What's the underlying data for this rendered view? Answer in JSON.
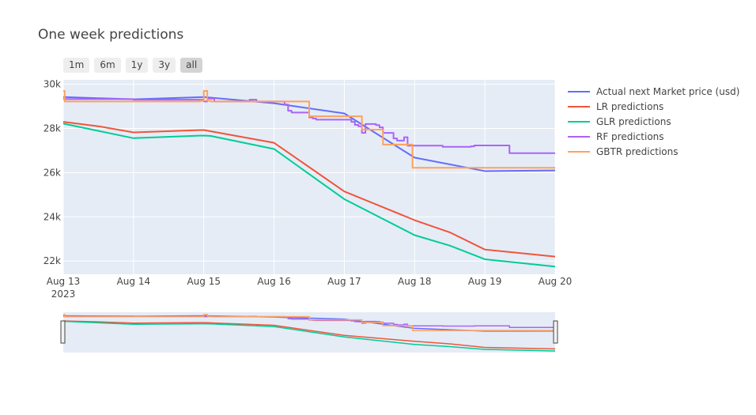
{
  "chart_data": {
    "type": "line",
    "title": "One week predictions",
    "range_buttons": [
      "1m",
      "6m",
      "1y",
      "3y",
      "all"
    ],
    "active_range": "all",
    "x_ticks": [
      "Aug 13",
      "Aug 14",
      "Aug 15",
      "Aug 16",
      "Aug 17",
      "Aug 18",
      "Aug 19",
      "Aug 20"
    ],
    "x_year_label": "2023",
    "xlim": [
      0,
      7
    ],
    "x_unit": "days from Aug 13 2023",
    "y_ticks": [
      "22k",
      "24k",
      "26k",
      "28k",
      "30k"
    ],
    "y_tick_values": [
      22000,
      24000,
      26000,
      28000,
      30000
    ],
    "ylim": [
      21400,
      30200
    ],
    "legend_position": "right",
    "grid": true,
    "range_slider": true,
    "series": [
      {
        "name": "Actual next Market price (usd)",
        "color": "#636efa",
        "shape": "linear",
        "points": [
          [
            0,
            29420
          ],
          [
            1,
            29320
          ],
          [
            2,
            29420
          ],
          [
            3,
            29140
          ],
          [
            4,
            28680
          ],
          [
            5,
            26680
          ],
          [
            6,
            26070
          ],
          [
            7,
            26100
          ]
        ]
      },
      {
        "name": "LR predictions",
        "color": "#ef553b",
        "shape": "linear",
        "points": [
          [
            0,
            28300
          ],
          [
            0.5,
            28100
          ],
          [
            1,
            27820
          ],
          [
            2,
            27930
          ],
          [
            3,
            27350
          ],
          [
            4,
            25150
          ],
          [
            5,
            23850
          ],
          [
            5.5,
            23300
          ],
          [
            6,
            22520
          ],
          [
            7,
            22200
          ]
        ]
      },
      {
        "name": "GLR predictions",
        "color": "#00cc96",
        "shape": "linear",
        "points": [
          [
            0,
            28220
          ],
          [
            1,
            27560
          ],
          [
            2,
            27680
          ],
          [
            2.1,
            27660
          ],
          [
            3,
            27070
          ],
          [
            4,
            24800
          ],
          [
            5,
            23170
          ],
          [
            5.5,
            22700
          ],
          [
            6,
            22080
          ],
          [
            7,
            21750
          ]
        ]
      },
      {
        "name": "RF predictions",
        "color": "#ab63fa",
        "shape": "hv",
        "points": [
          [
            0,
            29330
          ],
          [
            1,
            29300
          ],
          [
            2,
            29220
          ],
          [
            2.05,
            29350
          ],
          [
            2.15,
            29220
          ],
          [
            2.65,
            29300
          ],
          [
            2.75,
            29220
          ],
          [
            3.15,
            29080
          ],
          [
            3.2,
            28800
          ],
          [
            3.25,
            28720
          ],
          [
            3.5,
            28500
          ],
          [
            3.55,
            28450
          ],
          [
            3.6,
            28400
          ],
          [
            4.1,
            28300
          ],
          [
            4.15,
            28160
          ],
          [
            4.2,
            28100
          ],
          [
            4.25,
            27800
          ],
          [
            4.3,
            28200
          ],
          [
            4.45,
            28150
          ],
          [
            4.5,
            28050
          ],
          [
            4.55,
            27800
          ],
          [
            4.7,
            27550
          ],
          [
            4.75,
            27450
          ],
          [
            4.85,
            27600
          ],
          [
            4.9,
            27220
          ],
          [
            5.4,
            27170
          ],
          [
            5.8,
            27190
          ],
          [
            5.85,
            27230
          ],
          [
            6.3,
            27230
          ],
          [
            6.35,
            26880
          ],
          [
            7,
            26880
          ]
        ]
      },
      {
        "name": "GBTR predictions",
        "color": "#ffa15a",
        "shape": "hv",
        "points": [
          [
            0,
            29700
          ],
          [
            0.02,
            29220
          ],
          [
            1.95,
            29250
          ],
          [
            2.0,
            29700
          ],
          [
            2.05,
            29250
          ],
          [
            2.1,
            29220
          ],
          [
            3.0,
            29220
          ],
          [
            3.5,
            28550
          ],
          [
            4.1,
            28550
          ],
          [
            4.25,
            27950
          ],
          [
            4.55,
            27270
          ],
          [
            4.95,
            27270
          ],
          [
            4.97,
            26220
          ],
          [
            7,
            26220
          ]
        ]
      }
    ]
  }
}
